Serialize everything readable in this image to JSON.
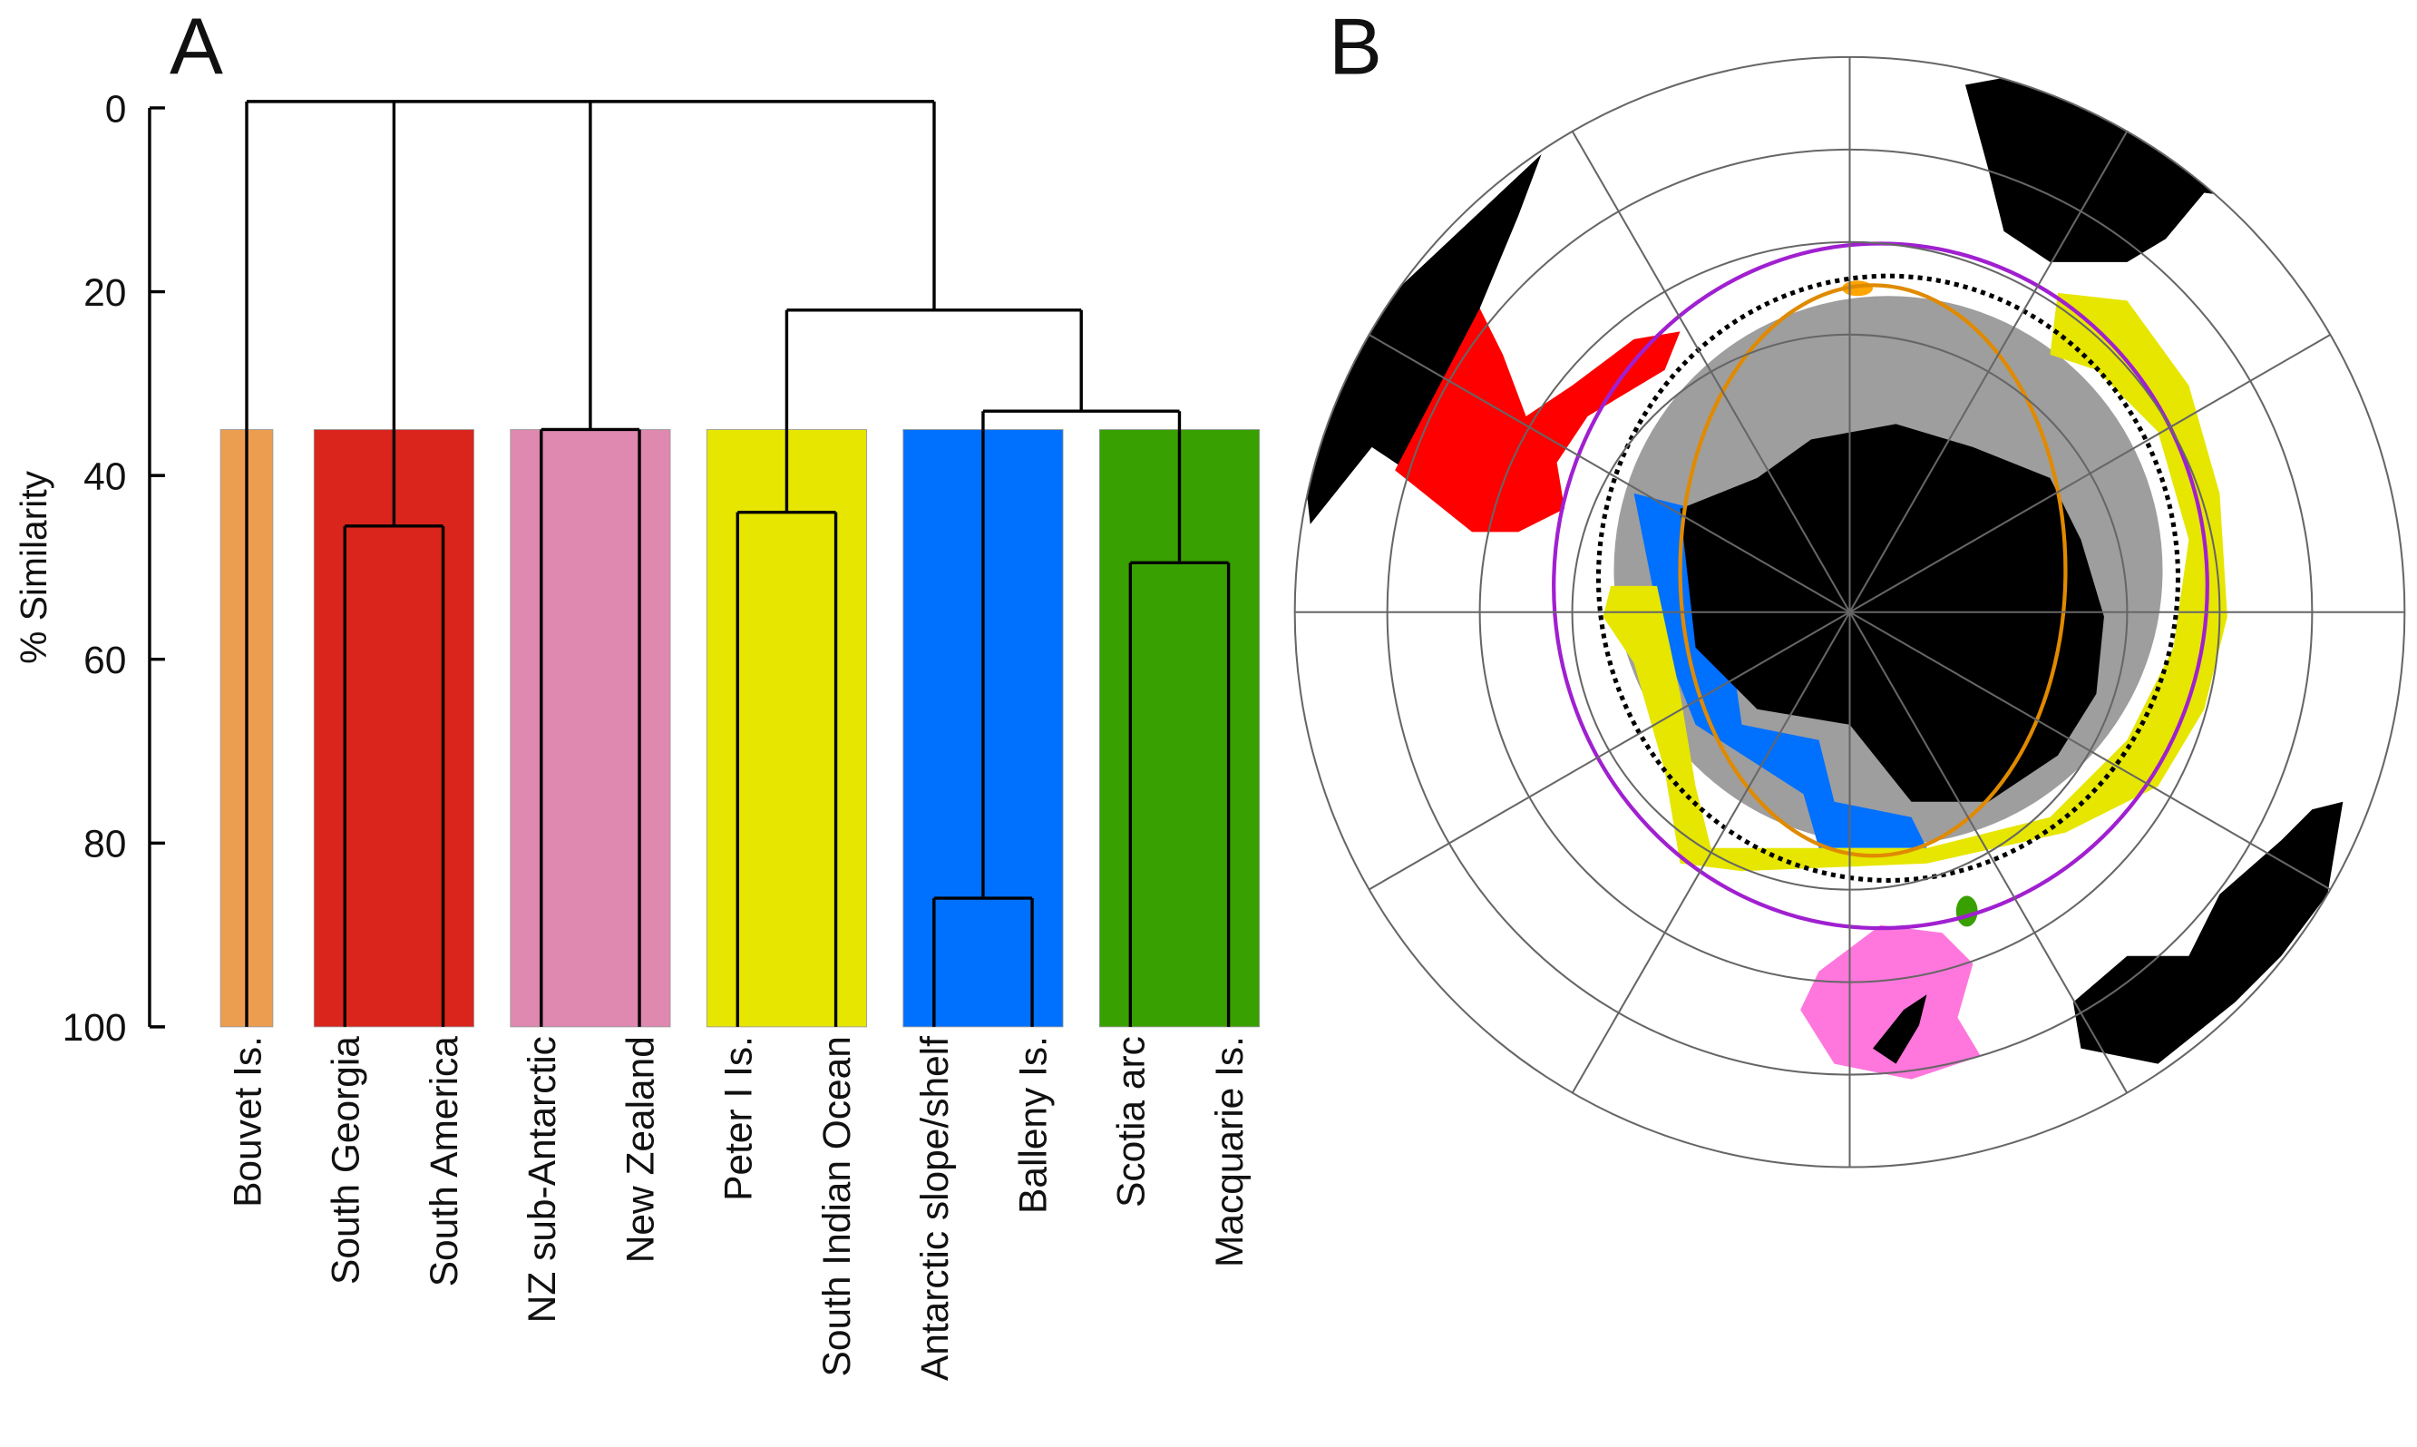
{
  "panels": {
    "a_label": "A",
    "b_label": "B"
  },
  "chart_data": {
    "type": "dendrogram",
    "ylabel": "% Similarity",
    "ylim": [
      0,
      100
    ],
    "yticks": [
      "0",
      "20",
      "40",
      "60",
      "80",
      "100"
    ],
    "leaves": [
      "Bouvet Is.",
      "South Georgia",
      "South America",
      "NZ sub-Antarctic",
      "New Zealand",
      "Peter I Is.",
      "South Indian Ocean",
      "Antarctic slope/shelf",
      "Balleny Is.",
      "Scotia arc",
      "Macquarie Is."
    ],
    "merges": [
      {
        "members": [
          "South Georgia",
          "South America"
        ],
        "similarity": 45.5
      },
      {
        "members": [
          "NZ sub-Antarctic",
          "New Zealand"
        ],
        "similarity": 35
      },
      {
        "members": [
          "Peter I Is.",
          "South Indian Ocean"
        ],
        "similarity": 44
      },
      {
        "members": [
          "Antarctic slope/shelf",
          "Balleny Is."
        ],
        "similarity": 86
      },
      {
        "members": [
          "Scotia arc",
          "Macquarie Is."
        ],
        "similarity": 49.5
      },
      {
        "members": [
          "Antarctic slope/shelf + Balleny Is.",
          "Scotia arc + Macquarie Is."
        ],
        "similarity": 33
      },
      {
        "members": [
          "Peter I Is. + South Indian Ocean",
          "Antarctic/Balleny/Scotia/Macquarie"
        ],
        "similarity": 22
      },
      {
        "members": [
          "Bouvet Is.",
          "South Georgia + South America",
          "NZ sub-Antarctic + New Zealand",
          "remaining cluster"
        ],
        "similarity": 0
      }
    ],
    "group_cut_similarity": 35,
    "groups": [
      {
        "leaves": [
          "Bouvet Is."
        ],
        "color": "#EB9E50"
      },
      {
        "leaves": [
          "South Georgia",
          "South America"
        ],
        "color": "#DA251D"
      },
      {
        "leaves": [
          "NZ sub-Antarctic",
          "New Zealand"
        ],
        "color": "#DF88B0"
      },
      {
        "leaves": [
          "Peter I Is.",
          "South Indian Ocean"
        ],
        "color": "#E6E600"
      },
      {
        "leaves": [
          "Antarctic slope/shelf",
          "Balleny Is."
        ],
        "color": "#0070FF"
      },
      {
        "leaves": [
          "Scotia arc",
          "Macquarie Is."
        ],
        "color": "#38A000"
      }
    ]
  }
}
